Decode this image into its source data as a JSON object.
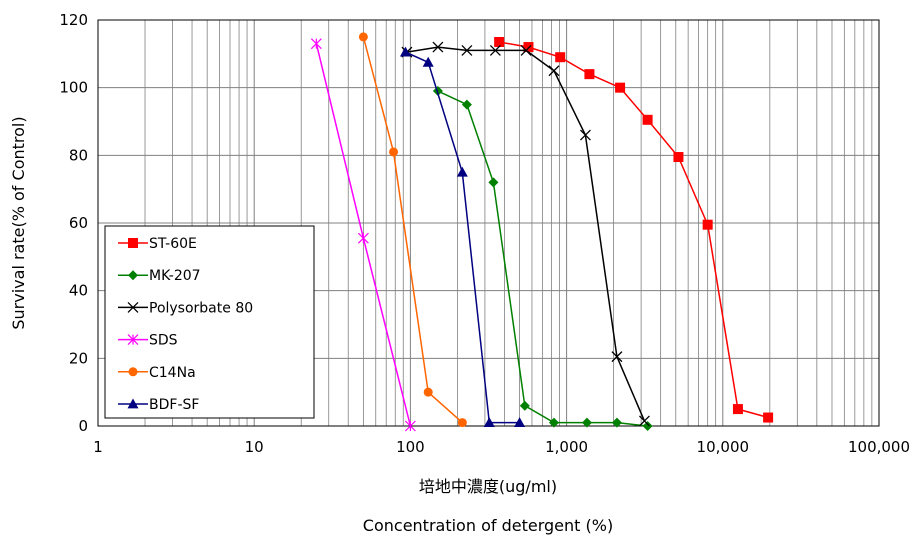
{
  "chart_data": {
    "type": "line",
    "xscale": "log",
    "xlim": [
      1,
      100000
    ],
    "ylim": [
      0,
      120
    ],
    "xticks": [
      1,
      10,
      100,
      1000,
      10000,
      100000
    ],
    "xtick_labels": [
      "1",
      "10",
      "100",
      "1,000",
      "10,000",
      "100,000"
    ],
    "yticks": [
      0,
      20,
      40,
      60,
      80,
      100,
      120
    ],
    "ytick_labels": [
      "0",
      "20",
      "40",
      "60",
      "80",
      "100",
      "120"
    ],
    "xlabel": "培地中濃度(ug/ml)",
    "xlabel2": "Concentration of detergent (%)",
    "ylabel": "Survival rate(% of Control)",
    "grid": true,
    "legend": "lower-left",
    "series": [
      {
        "name": "ST-60E",
        "color": "#ff0000",
        "marker": "square",
        "x": [
          370,
          570,
          910,
          1400,
          2200,
          3300,
          5200,
          8000,
          12500,
          19500
        ],
        "y": [
          113.5,
          112,
          109,
          104,
          100,
          90.5,
          79.5,
          59.5,
          5,
          2.5
        ]
      },
      {
        "name": "MK-207",
        "color": "#008000",
        "marker": "diamond",
        "x": [
          150,
          230,
          340,
          540,
          830,
          1350,
          2100,
          3300
        ],
        "y": [
          99,
          95,
          72,
          6,
          1,
          1,
          1,
          0
        ]
      },
      {
        "name": "Polysorbate 80",
        "color": "#000000",
        "marker": "x",
        "x": [
          95,
          150,
          230,
          350,
          550,
          830,
          1320,
          2100,
          3150
        ],
        "y": [
          110.5,
          112,
          111,
          111,
          111,
          105,
          86,
          20.5,
          1.5
        ]
      },
      {
        "name": "SDS",
        "color": "#ff00ff",
        "marker": "asterisk",
        "x": [
          25,
          50,
          100
        ],
        "y": [
          113,
          55.5,
          0
        ]
      },
      {
        "name": "C14Na",
        "color": "#ff6600",
        "marker": "circle",
        "x": [
          50,
          78,
          130,
          215
        ],
        "y": [
          115,
          81,
          10,
          1
        ]
      },
      {
        "name": "BDF-SF",
        "color": "#000080",
        "marker": "triangle",
        "x": [
          93,
          130,
          215,
          320,
          500
        ],
        "y": [
          110.5,
          107.5,
          75,
          1,
          1
        ]
      }
    ]
  }
}
